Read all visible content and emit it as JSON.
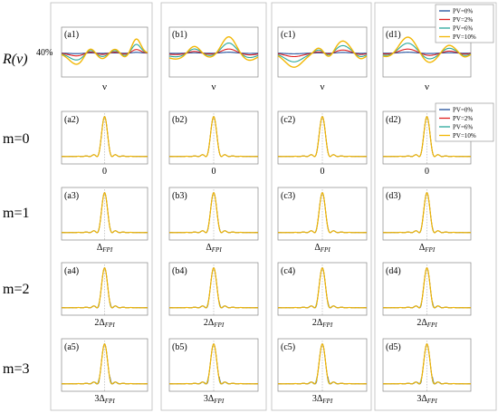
{
  "figure": {
    "row_labels": [
      {
        "text": "R(ν)",
        "italic": true
      },
      {
        "text": "m=0"
      },
      {
        "text": "m=1"
      },
      {
        "text": "m=2"
      },
      {
        "text": "m=3"
      }
    ],
    "percent_label": "40%",
    "legend_top": [
      "PV=0%",
      "PV=2%",
      "PV=6%",
      "PV=10%"
    ],
    "legend_mid": [
      "PV=0%",
      "PV=2%",
      "PV=6%",
      "PV=10%"
    ]
  },
  "chart_data": [
    {
      "type": "line",
      "group": "residual",
      "columns": [
        "a1",
        "b1",
        "c1",
        "d1"
      ],
      "xlabel": "ν",
      "ylabel": "R(ν)",
      "y_tick_label": "40%",
      "series": [
        {
          "name": "PV=0%",
          "color": "#1f4e9c"
        },
        {
          "name": "PV=2%",
          "color": "#e02020"
        },
        {
          "name": "PV=6%",
          "color": "#2aa89a"
        },
        {
          "name": "PV=10%",
          "color": "#f2b705"
        }
      ],
      "panels": {
        "a1": {
          "bumps": [
            [
              0.18,
              0.09,
              -0.85
            ],
            [
              0.33,
              0.06,
              0.55
            ],
            [
              0.47,
              0.07,
              -0.45
            ],
            [
              0.62,
              0.06,
              0.35
            ],
            [
              0.73,
              0.05,
              -0.35
            ],
            [
              0.87,
              0.05,
              1.05
            ]
          ]
        },
        "b1": {
          "bumps": [
            [
              0.08,
              0.12,
              -0.45
            ],
            [
              0.28,
              0.07,
              0.65
            ],
            [
              0.46,
              0.09,
              -0.35
            ],
            [
              0.67,
              0.08,
              1.25
            ],
            [
              0.9,
              0.09,
              -0.55
            ]
          ]
        },
        "c1": {
          "bumps": [
            [
              0.18,
              0.1,
              -1.05
            ],
            [
              0.46,
              0.05,
              0.4
            ],
            [
              0.58,
              0.05,
              -0.4
            ],
            [
              0.73,
              0.08,
              0.9
            ],
            [
              0.93,
              0.06,
              -0.45
            ]
          ]
        },
        "d1": {
          "bumps": [
            [
              0.08,
              0.1,
              -0.35
            ],
            [
              0.28,
              0.1,
              1.25
            ],
            [
              0.52,
              0.09,
              -0.75
            ],
            [
              0.75,
              0.07,
              0.6
            ],
            [
              0.93,
              0.05,
              -0.3
            ]
          ]
        }
      }
    },
    {
      "type": "line",
      "group": "fringe",
      "series_names": [
        "PV=0%",
        "PV=2%",
        "PV=6%",
        "PV=10%"
      ],
      "series_colors": [
        "#1f4e9c",
        "#e02020",
        "#2aa89a",
        "#f2b705"
      ],
      "shape": "sinc",
      "rows": [
        {
          "m": 0,
          "tick": "0",
          "panels": [
            "a2",
            "b2",
            "c2",
            "d2"
          ]
        },
        {
          "m": 1,
          "tick": "Δ_FPI",
          "panels": [
            "a3",
            "b3",
            "c3",
            "d3"
          ]
        },
        {
          "m": 2,
          "tick": "2Δ_FPI",
          "panels": [
            "a4",
            "b4",
            "c4",
            "d4"
          ]
        },
        {
          "m": 3,
          "tick": "3Δ_FPI",
          "panels": [
            "a5",
            "b5",
            "c5",
            "d5"
          ]
        }
      ]
    }
  ]
}
